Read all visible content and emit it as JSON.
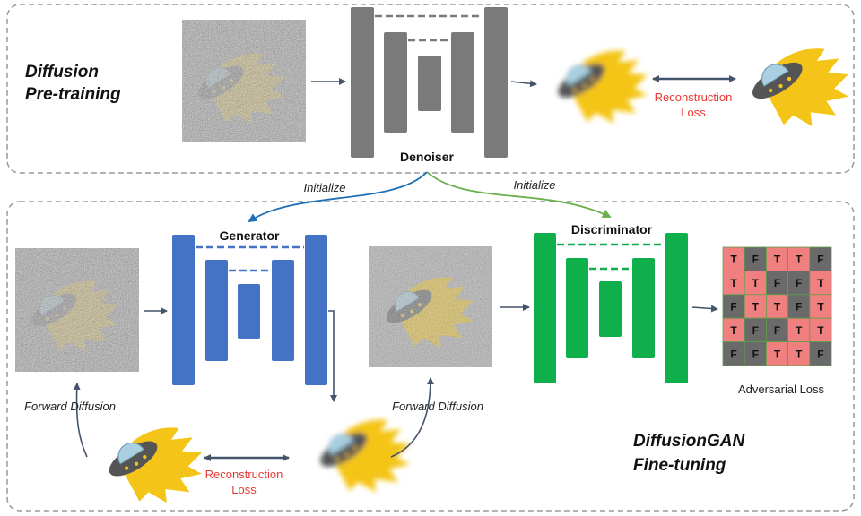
{
  "pretraining": {
    "title_line1": "Diffusion",
    "title_line2": "Pre-training",
    "denoiser_label": "Denoiser",
    "reconstruction_line1": "Reconstruction",
    "reconstruction_line2": "Loss"
  },
  "edges": {
    "initialize_generator": "Initialize",
    "initialize_discriminator": "Initialize"
  },
  "finetuning": {
    "title_line1": "DiffusionGAN",
    "title_line2": "Fine-tuning",
    "generator_label": "Generator",
    "discriminator_label": "Discriminator",
    "forward_diffusion_left": "Forward Diffusion",
    "forward_diffusion_right": "Forward Diffusion",
    "reconstruction_line1": "Reconstruction",
    "reconstruction_line2": "Loss",
    "adversarial_label": "Adversarial Loss",
    "grid": [
      [
        "T",
        "F",
        "T",
        "T",
        "F"
      ],
      [
        "T",
        "T",
        "F",
        "F",
        "T"
      ],
      [
        "F",
        "T",
        "T",
        "F",
        "T"
      ],
      [
        "T",
        "F",
        "F",
        "T",
        "T"
      ],
      [
        "F",
        "F",
        "T",
        "T",
        "F"
      ]
    ]
  },
  "colors": {
    "denoiser": "#7a7a7a",
    "generator": "#4472c4",
    "discriminator": "#0fb04c",
    "loss_text": "#e53935",
    "true_cell": "#f07f7f",
    "false_cell": "#6a6a6a",
    "init_generator_arrow": "#1f6fb5",
    "init_discriminator_arrow": "#6ab04c",
    "ufo_body": "#f4c518"
  }
}
